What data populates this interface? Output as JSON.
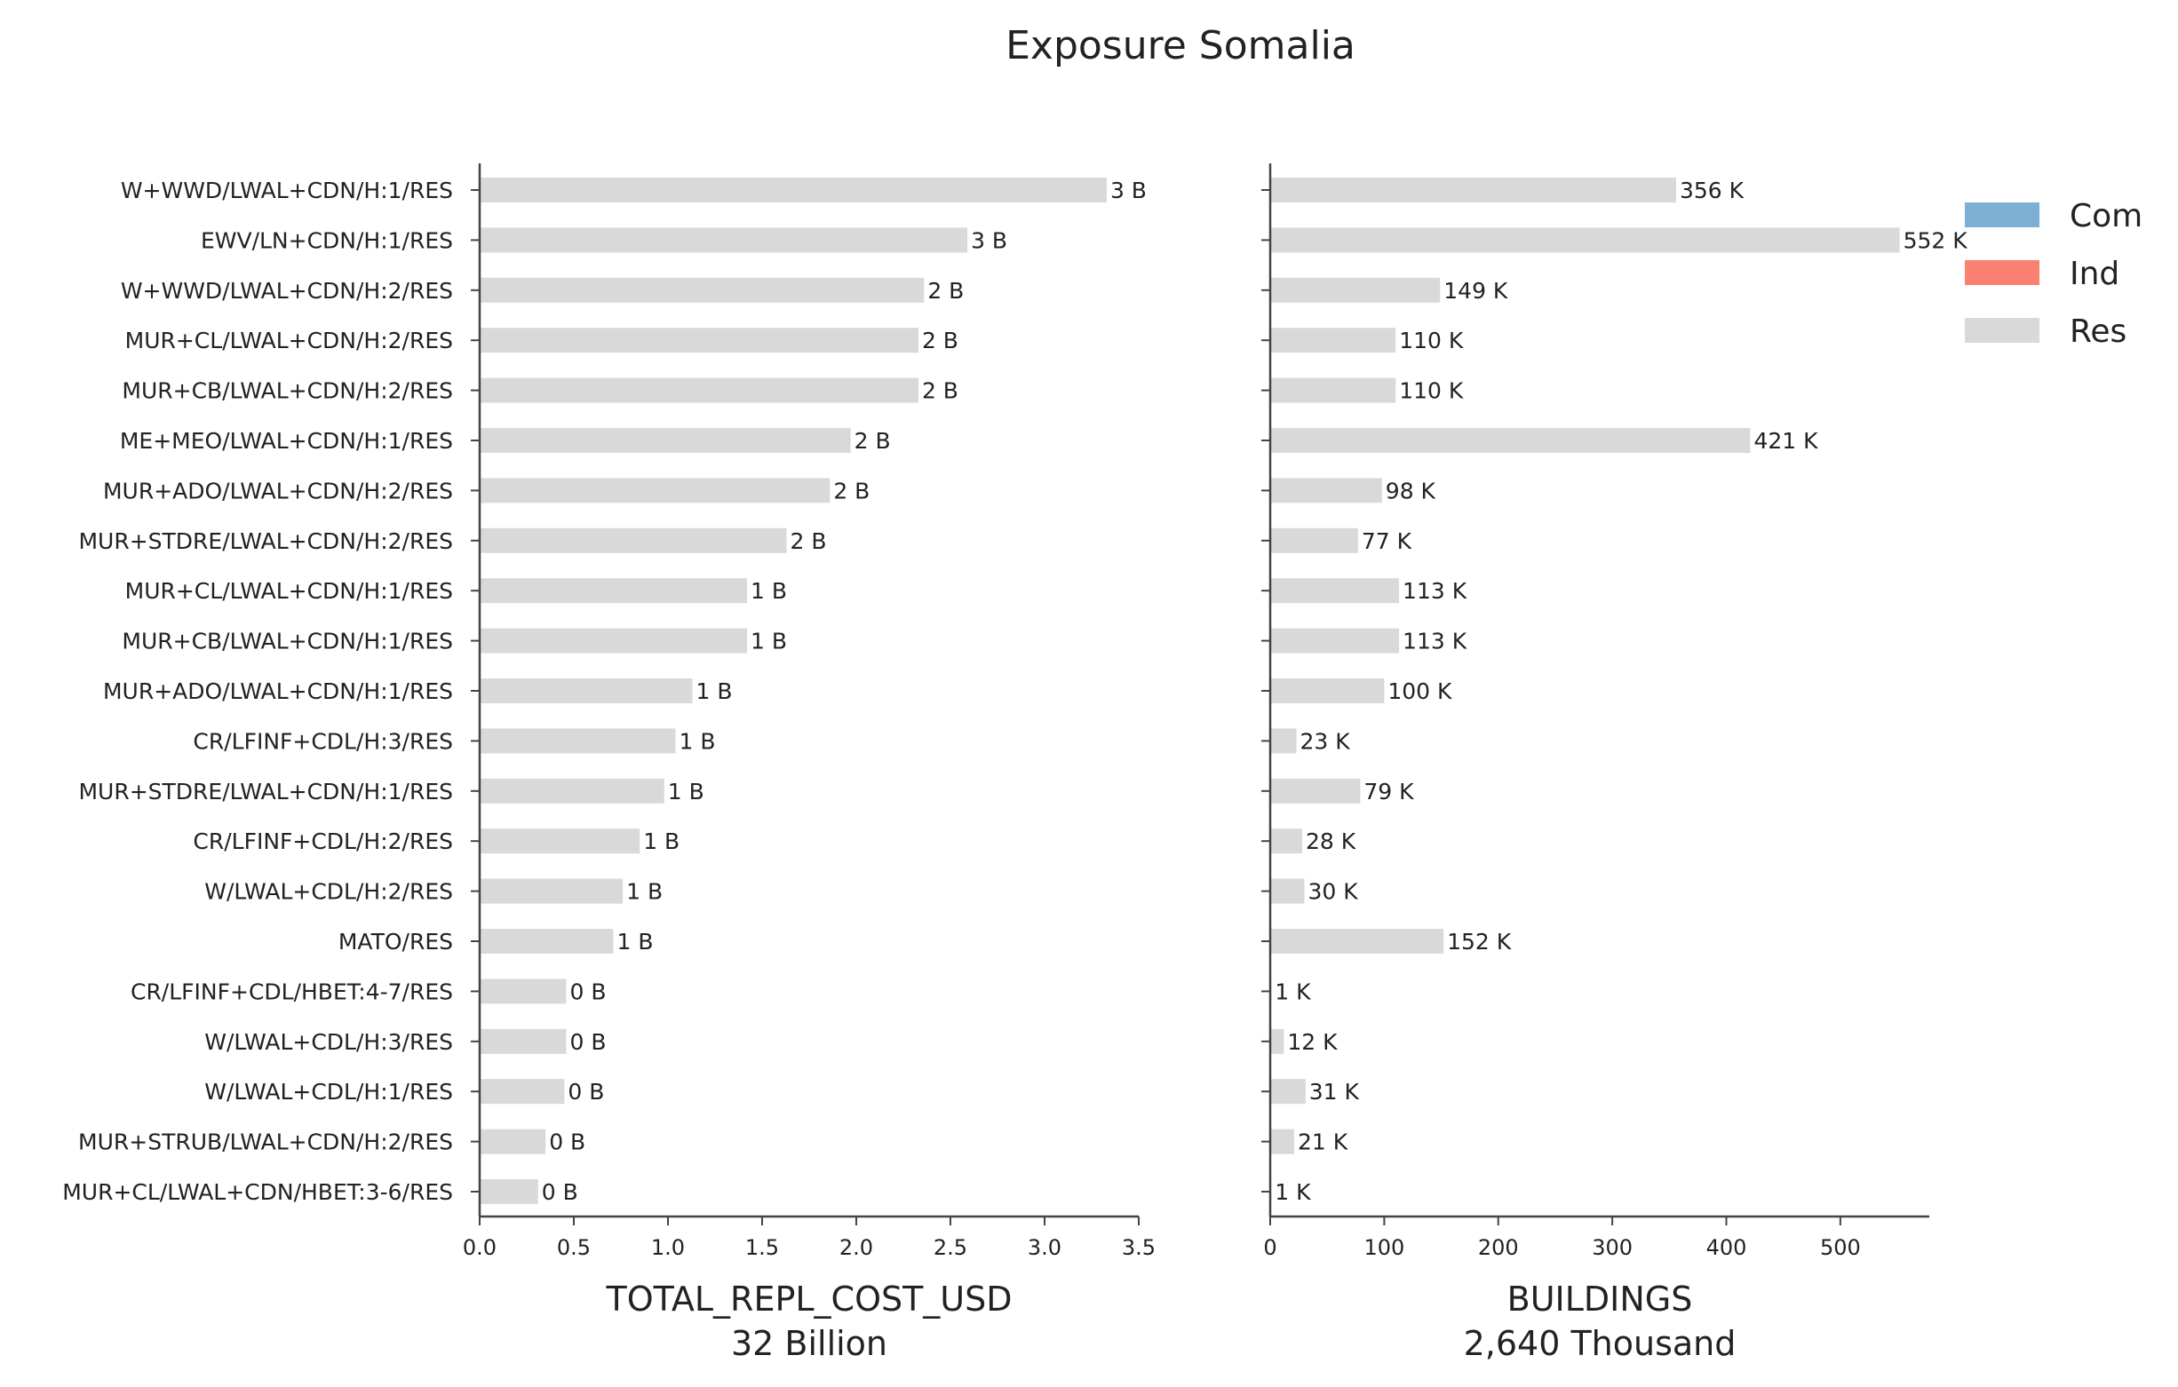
{
  "title": "Exposure Somalia",
  "legend": {
    "placement": "top-right",
    "items": [
      {
        "label": "Com",
        "color": "#7bafd4"
      },
      {
        "label": "Ind",
        "color": "#fa8072"
      },
      {
        "label": "Res",
        "color": "#d9d9d9"
      }
    ]
  },
  "chart_data": [
    {
      "type": "bar",
      "orientation": "horizontal",
      "xlabel": "TOTAL_REPL_COST_USD",
      "xlabel_sub": "32 Billion",
      "xlim": [
        0,
        3.5
      ],
      "xticks": [
        "0.0",
        "0.5",
        "1.0",
        "1.5",
        "2.0",
        "2.5",
        "3.0",
        "3.5"
      ],
      "xtick_values": [
        0,
        0.5,
        1.0,
        1.5,
        2.0,
        2.5,
        3.0,
        3.5
      ],
      "bar_color": "#d9d9d9",
      "categories": [
        "W+WWD/LWAL+CDN/H:1/RES",
        "EWV/LN+CDN/H:1/RES",
        "W+WWD/LWAL+CDN/H:2/RES",
        "MUR+CL/LWAL+CDN/H:2/RES",
        "MUR+CB/LWAL+CDN/H:2/RES",
        "ME+MEO/LWAL+CDN/H:1/RES",
        "MUR+ADO/LWAL+CDN/H:2/RES",
        "MUR+STDRE/LWAL+CDN/H:2/RES",
        "MUR+CL/LWAL+CDN/H:1/RES",
        "MUR+CB/LWAL+CDN/H:1/RES",
        "MUR+ADO/LWAL+CDN/H:1/RES",
        "CR/LFINF+CDL/H:3/RES",
        "MUR+STDRE/LWAL+CDN/H:1/RES",
        "CR/LFINF+CDL/H:2/RES",
        "W/LWAL+CDL/H:2/RES",
        "MATO/RES",
        "CR/LFINF+CDL/HBET:4-7/RES",
        "W/LWAL+CDL/H:3/RES",
        "W/LWAL+CDL/H:1/RES",
        "MUR+STRUB/LWAL+CDN/H:2/RES",
        "MUR+CL/LWAL+CDN/HBET:3-6/RES"
      ],
      "values": [
        3.33,
        2.59,
        2.36,
        2.33,
        2.33,
        1.97,
        1.86,
        1.63,
        1.42,
        1.42,
        1.13,
        1.04,
        0.98,
        0.85,
        0.76,
        0.71,
        0.46,
        0.46,
        0.45,
        0.35,
        0.31
      ],
      "data_labels": [
        "3 B",
        "3 B",
        "2 B",
        "2 B",
        "2 B",
        "2 B",
        "2 B",
        "2 B",
        "1 B",
        "1 B",
        "1 B",
        "1 B",
        "1 B",
        "1 B",
        "1 B",
        "1 B",
        "0 B",
        "0 B",
        "0 B",
        "0 B",
        "0 B"
      ]
    },
    {
      "type": "bar",
      "orientation": "horizontal",
      "xlabel": "BUILDINGS",
      "xlabel_sub": "2,640 Thousand",
      "xlim": [
        0,
        578
      ],
      "xticks": [
        "0",
        "100",
        "200",
        "300",
        "400",
        "500"
      ],
      "xtick_values": [
        0,
        100,
        200,
        300,
        400,
        500
      ],
      "bar_color": "#d9d9d9",
      "values": [
        356,
        552,
        149,
        110,
        110,
        421,
        98,
        77,
        113,
        113,
        100,
        23,
        79,
        28,
        30,
        152,
        1,
        12,
        31,
        21,
        1
      ],
      "data_labels": [
        "356 K",
        "552 K",
        "149 K",
        "110 K",
        "110 K",
        "421 K",
        "98 K",
        "77 K",
        "113 K",
        "113 K",
        "100 K",
        "23 K",
        "79 K",
        "28 K",
        "30 K",
        "152 K",
        "1 K",
        "12 K",
        "31 K",
        "21 K",
        "1 K"
      ]
    }
  ]
}
